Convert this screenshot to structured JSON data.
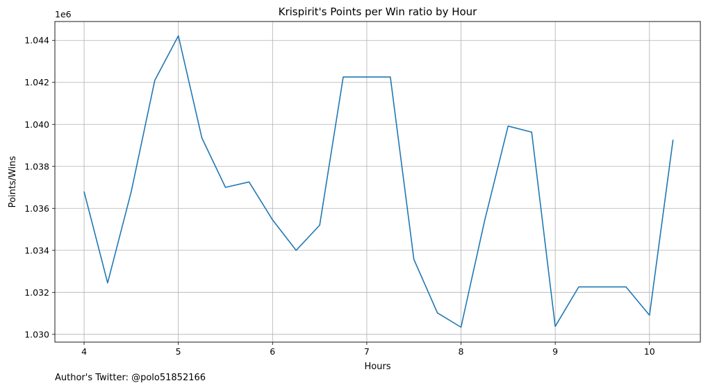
{
  "chart_data": {
    "type": "line",
    "title": "Krispirit's Points per Win ratio by Hour",
    "xlabel": "Hours",
    "ylabel": "Points/Wins",
    "y_offset_label": "1e6",
    "xlim": [
      3.69,
      10.54
    ],
    "ylim": [
      1.02963,
      1.0449
    ],
    "x_ticks": [
      4,
      5,
      6,
      7,
      8,
      9,
      10
    ],
    "y_ticks": [
      1.03,
      1.032,
      1.034,
      1.036,
      1.038,
      1.04,
      1.042,
      1.044
    ],
    "x_tick_labels": [
      "4",
      "5",
      "6",
      "7",
      "8",
      "9",
      "10"
    ],
    "y_tick_labels": [
      "1.030",
      "1.032",
      "1.034",
      "1.036",
      "1.038",
      "1.040",
      "1.042",
      "1.044"
    ],
    "grid": true,
    "series": [
      {
        "color": "#1f77b4",
        "x": [
          4,
          4.25,
          4.5,
          4.75,
          5,
          5.25,
          5.5,
          5.75,
          6,
          6.25,
          6.5,
          6.75,
          7,
          7.25,
          7.5,
          7.75,
          8,
          8.25,
          8.5,
          8.75,
          9,
          9.25,
          9.5,
          9.75,
          10,
          10.25
        ],
        "y": [
          1.0368,
          1.03245,
          1.0368,
          1.0421,
          1.04422,
          1.03935,
          1.037,
          1.03726,
          1.03545,
          1.034,
          1.0352,
          1.04226,
          1.04226,
          1.04226,
          1.03357,
          1.03102,
          1.03034,
          1.0354,
          1.03992,
          1.03963,
          1.03038,
          1.03226,
          1.03226,
          1.03226,
          1.03091,
          1.03927
        ]
      }
    ]
  },
  "footer": {
    "text": "Author's Twitter: @polo51852166"
  }
}
